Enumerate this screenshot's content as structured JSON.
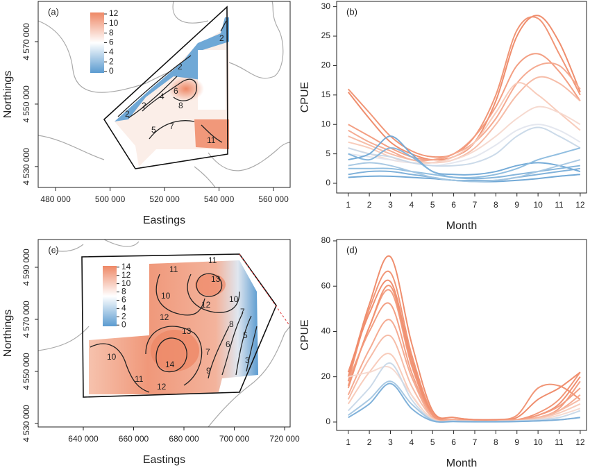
{
  "chart_data": [
    {
      "type": "map",
      "panel_label": "(a)",
      "xlabel": "Eastings",
      "ylabel": "Northings",
      "xlim": [
        473600,
        566100
      ],
      "ylim": [
        4523300,
        4582900
      ],
      "xticks": [
        {
          "value": 480000,
          "label": "480 000"
        },
        {
          "value": 500000,
          "label": "500 000"
        },
        {
          "value": 520000,
          "label": "520 000"
        },
        {
          "value": 540000,
          "label": "540 000"
        },
        {
          "value": 560000,
          "label": "560 000"
        }
      ],
      "yticks": [
        {
          "value": 4530000,
          "label": "4 530 000"
        },
        {
          "value": 4550000,
          "label": "4 550 000"
        },
        {
          "value": 4570000,
          "label": "4 570 000"
        }
      ],
      "colorbar": {
        "lim": [
          -0.3,
          12.3
        ],
        "ticks": [
          0,
          2,
          4,
          6,
          8,
          10,
          12
        ],
        "colors": [
          "#5b9bd0",
          "#ffffff",
          "#ee8866"
        ]
      },
      "contour_labels": [
        2,
        2,
        2,
        4,
        5,
        6,
        7,
        8,
        11,
        2
      ]
    },
    {
      "type": "line",
      "panel_label": "(b)",
      "xlabel": "Month",
      "ylabel": "CPUE",
      "x": [
        1,
        2,
        3,
        4,
        5,
        6,
        7,
        8,
        9,
        10,
        11,
        12
      ],
      "xlim": [
        0.45,
        12.3
      ],
      "xticks": [
        1,
        2,
        3,
        4,
        5,
        6,
        7,
        8,
        9,
        10,
        11,
        12
      ],
      "ylim": [
        -1.65,
        30.9
      ],
      "yticks": [
        0,
        5,
        10,
        15,
        20,
        25,
        30
      ],
      "series": [
        {
          "color": "#ee8866",
          "values": [
            15.5,
            11,
            7,
            5,
            4,
            4.5,
            7,
            14,
            25,
            28.5,
            24,
            15.5
          ]
        },
        {
          "color": "#f09070",
          "values": [
            16,
            12,
            8,
            5.5,
            4.5,
            5,
            8,
            15,
            26,
            28,
            22,
            15
          ]
        },
        {
          "color": "#f29a7c",
          "values": [
            10,
            8,
            6,
            4.5,
            4,
            5,
            8,
            13,
            20,
            22,
            19,
            14
          ]
        },
        {
          "color": "#f4a78c",
          "values": [
            9,
            7,
            5.5,
            4,
            4,
            5,
            7,
            11,
            17,
            20,
            20,
            16
          ]
        },
        {
          "color": "#f6b8a2",
          "values": [
            8,
            6.5,
            5,
            4,
            3.5,
            4,
            6,
            10,
            15,
            18,
            17,
            14
          ]
        },
        {
          "color": "#f8c9b7",
          "values": [
            7,
            6,
            4.5,
            3.5,
            3.5,
            4.5,
            7,
            12,
            17,
            15,
            12,
            9
          ]
        },
        {
          "color": "#f5d8ce",
          "values": [
            6,
            5,
            4,
            3.5,
            3.5,
            4,
            5.5,
            8,
            11,
            13,
            12,
            10
          ]
        },
        {
          "color": "#e3e6ee",
          "values": [
            5,
            4.5,
            4,
            3.5,
            3,
            3.5,
            4.5,
            6.5,
            9,
            10,
            9,
            7
          ]
        },
        {
          "color": "#c8d8e8",
          "values": [
            6,
            5,
            4.5,
            3.5,
            3,
            3,
            3.5,
            5,
            8,
            9.5,
            8,
            6
          ]
        },
        {
          "color": "#6fa8d6",
          "values": [
            4,
            5,
            8,
            5,
            2,
            1.5,
            1.5,
            2,
            3,
            3.5,
            3,
            2
          ]
        },
        {
          "color": "#80b2da",
          "values": [
            5,
            4,
            6,
            4.5,
            2,
            1,
            0.8,
            1,
            1.5,
            2,
            2.5,
            3
          ]
        },
        {
          "color": "#8bbade",
          "values": [
            2.5,
            2.5,
            2.5,
            2,
            1.5,
            1,
            1,
            1.5,
            2.5,
            4,
            5,
            6
          ]
        },
        {
          "color": "#7aaed8",
          "values": [
            1.5,
            2,
            2,
            1.5,
            1,
            0.5,
            0.5,
            0.5,
            1,
            1.5,
            2,
            2.5
          ]
        },
        {
          "color": "#6aa4d4",
          "values": [
            1,
            1.2,
            1.2,
            1,
            0.8,
            0.5,
            0.3,
            0.3,
            0.5,
            0.8,
            1.2,
            1.5
          ]
        },
        {
          "color": "#a4c6e2",
          "values": [
            3,
            3.5,
            3,
            2,
            1,
            0.5,
            0.3,
            0.5,
            1,
            2,
            3,
            4
          ]
        }
      ]
    },
    {
      "type": "map",
      "panel_label": "(c)",
      "xlabel": "Eastings",
      "ylabel": "Northings",
      "xlim": [
        622070,
        722200
      ],
      "ylim": [
        4528670,
        4600670
      ],
      "xticks": [
        {
          "value": 640000,
          "label": "640 000"
        },
        {
          "value": 660000,
          "label": "660 000"
        },
        {
          "value": 680000,
          "label": "680 000"
        },
        {
          "value": 700000,
          "label": "700 000"
        },
        {
          "value": 720000,
          "label": "720 000"
        }
      ],
      "yticks": [
        {
          "value": 4530000,
          "label": "4 530 000"
        },
        {
          "value": 4550000,
          "label": "4 550 000"
        },
        {
          "value": 4570000,
          "label": "4 570 000"
        },
        {
          "value": 4590000,
          "label": "4 590 000"
        }
      ],
      "colorbar": {
        "lim": [
          -0.3,
          14.3
        ],
        "ticks": [
          0,
          2,
          4,
          6,
          8,
          10,
          12,
          14
        ],
        "colors": [
          "#5b9bd0",
          "#ffffff",
          "#ee8866"
        ]
      },
      "contour_labels": [
        11,
        11,
        13,
        10,
        12,
        10,
        12,
        13,
        8,
        7,
        6,
        5,
        14,
        10,
        11,
        12,
        9,
        3,
        7
      ]
    },
    {
      "type": "line",
      "panel_label": "(d)",
      "xlabel": "Month",
      "ylabel": "CPUE",
      "x": [
        1,
        2,
        3,
        4,
        5,
        6,
        7,
        8,
        9,
        10,
        11,
        12
      ],
      "xlim": [
        0.45,
        12.3
      ],
      "xticks": [
        1,
        2,
        3,
        4,
        5,
        6,
        7,
        8,
        9,
        10,
        11,
        12
      ],
      "ylim": [
        -3.7,
        80.6
      ],
      "yticks": [
        0,
        20,
        40,
        60,
        80
      ],
      "series": [
        {
          "color": "#ee8866",
          "values": [
            20,
            52,
            73,
            35,
            5,
            2,
            1,
            1,
            2,
            10,
            15,
            22
          ]
        },
        {
          "color": "#f09070",
          "values": [
            18,
            50,
            66,
            30,
            4,
            2,
            1,
            1,
            3,
            15,
            16,
            10
          ]
        },
        {
          "color": "#ef8a6a",
          "values": [
            22,
            48,
            62,
            28,
            3,
            1,
            1,
            1,
            1,
            3,
            8,
            20
          ]
        },
        {
          "color": "#f29a7c",
          "values": [
            15,
            42,
            58,
            25,
            3,
            1,
            0.5,
            0.5,
            1,
            2,
            6,
            18
          ]
        },
        {
          "color": "#f09070",
          "values": [
            16,
            42,
            60,
            26,
            3,
            1,
            0.5,
            0.5,
            1,
            4,
            10,
            22
          ]
        },
        {
          "color": "#f29a7c",
          "values": [
            18,
            40,
            52,
            22,
            3,
            1,
            0.5,
            0.5,
            1,
            3,
            7,
            15
          ]
        },
        {
          "color": "#f4a78c",
          "values": [
            12,
            32,
            45,
            20,
            2,
            1,
            0.5,
            0.5,
            1,
            2,
            5,
            12
          ]
        },
        {
          "color": "#f6b8a2",
          "values": [
            10,
            28,
            38,
            16,
            2,
            0.5,
            0.3,
            0.3,
            0.5,
            2,
            5,
            10
          ]
        },
        {
          "color": "#f8c9b7",
          "values": [
            8,
            22,
            30,
            12,
            1.5,
            0.5,
            0.3,
            0.3,
            0.5,
            1.5,
            4,
            8
          ]
        },
        {
          "color": "#f5d8ce",
          "values": [
            20,
            22,
            24,
            12,
            1,
            0.5,
            0.3,
            0.3,
            0.5,
            1,
            3,
            6
          ]
        },
        {
          "color": "#c8d8e8",
          "values": [
            5,
            15,
            26,
            10,
            1,
            0.5,
            0.3,
            0.3,
            0.5,
            1,
            2,
            5
          ]
        },
        {
          "color": "#a4c6e2",
          "values": [
            3,
            10,
            18,
            8,
            0.8,
            0.3,
            0.2,
            0.2,
            0.3,
            0.5,
            1,
            2
          ]
        },
        {
          "color": "#7aaed8",
          "values": [
            2,
            8,
            17,
            6,
            0.5,
            0.2,
            0.1,
            0.1,
            0.2,
            0.5,
            1,
            2
          ]
        }
      ]
    }
  ]
}
